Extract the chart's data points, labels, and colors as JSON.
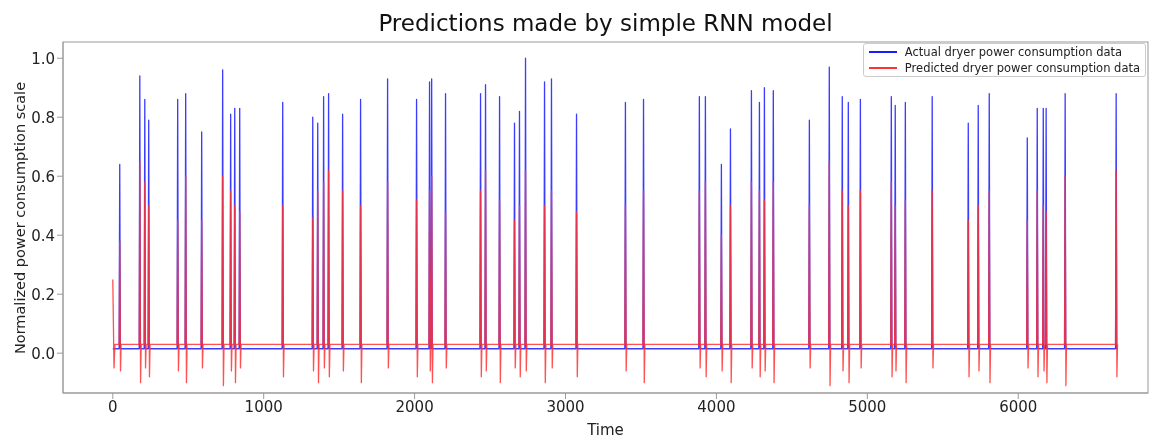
{
  "chart_data": {
    "type": "line",
    "title": "Predictions made by simple RNN model",
    "xlabel": "Time",
    "ylabel": "Normalized power consumption scale",
    "xlim": [
      -330,
      6860
    ],
    "xticks": [
      0,
      1000,
      2000,
      3000,
      4000,
      5000,
      6000
    ],
    "ylim": [
      -0.135,
      1.055
    ],
    "yticks": [
      {
        "value": 0,
        "label": "0.0"
      },
      0.2,
      0.4,
      0.6,
      0.8,
      {
        "value": 1,
        "label": "1.0"
      }
    ],
    "grid": false,
    "legend": "top right",
    "series": [
      {
        "name": "Actual dryer power consumption data",
        "color": "#1a1aff",
        "x": [
          0,
          42,
          46,
          50,
          175,
          179,
          183,
          208,
          212,
          216,
          234,
          238,
          242,
          426,
          430,
          434,
          479,
          483,
          487,
          585,
          589,
          593,
          724,
          728,
          732,
          777,
          781,
          785,
          804,
          808,
          812,
          837,
          841,
          845,
          1122,
          1126,
          1130,
          1321,
          1325,
          1329,
          1354,
          1358,
          1362,
          1393,
          1397,
          1401,
          1426,
          1430,
          1434,
          1519,
          1523,
          1527,
          1638,
          1642,
          1646,
          1817,
          1821,
          1825,
          2009,
          2013,
          2017,
          2095,
          2099,
          2103,
          2109,
          2113,
          2117,
          2201,
          2205,
          2209,
          2433,
          2437,
          2441,
          2466,
          2470,
          2474,
          2559,
          2563,
          2567,
          2658,
          2662,
          2666,
          2691,
          2695,
          2699,
          2731,
          2735,
          2739,
          2857,
          2861,
          2865,
          2903,
          2907,
          2911,
          3069,
          3073,
          3077,
          3393,
          3397,
          3401,
          3513,
          3517,
          3521,
          3883,
          3887,
          3891,
          3923,
          3927,
          3931,
          4029,
          4033,
          4037,
          4089,
          4093,
          4097,
          4228,
          4232,
          4236,
          4281,
          4285,
          4289,
          4314,
          4318,
          4322,
          4373,
          4377,
          4381,
          4612,
          4616,
          4620,
          4744,
          4748,
          4752,
          4830,
          4834,
          4838,
          4870,
          4874,
          4878,
          4950,
          4954,
          4958,
          5155,
          5159,
          5163,
          5181,
          5185,
          5189,
          5248,
          5252,
          5256,
          5426,
          5430,
          5434,
          5665,
          5669,
          5673,
          5731,
          5735,
          5739,
          5804,
          5808,
          5812,
          6056,
          6060,
          6064,
          6122,
          6126,
          6130,
          6162,
          6166,
          6170,
          6181,
          6185,
          6189,
          6307,
          6311,
          6315,
          6645,
          6649,
          6653,
          6660
        ],
        "values": [
          0.015,
          0.015,
          0.64,
          0.015,
          0.015,
          0.94,
          0.015,
          0.015,
          0.86,
          0.015,
          0.015,
          0.79,
          0.015,
          0.015,
          0.86,
          0.015,
          0.015,
          0.88,
          0.015,
          0.015,
          0.75,
          0.015,
          0.015,
          0.96,
          0.015,
          0.015,
          0.81,
          0.015,
          0.015,
          0.83,
          0.015,
          0.015,
          0.83,
          0.015,
          0.015,
          0.85,
          0.015,
          0.015,
          0.8,
          0.015,
          0.015,
          0.78,
          0.015,
          0.015,
          0.87,
          0.015,
          0.015,
          0.88,
          0.015,
          0.015,
          0.81,
          0.015,
          0.015,
          0.86,
          0.015,
          0.015,
          0.93,
          0.015,
          0.015,
          0.86,
          0.015,
          0.015,
          0.92,
          0.015,
          0.015,
          0.93,
          0.015,
          0.015,
          0.88,
          0.015,
          0.015,
          0.88,
          0.015,
          0.015,
          0.91,
          0.015,
          0.015,
          0.87,
          0.015,
          0.015,
          0.78,
          0.015,
          0.015,
          0.82,
          0.015,
          0.015,
          1.0,
          0.015,
          0.015,
          0.92,
          0.015,
          0.015,
          0.93,
          0.015,
          0.015,
          0.81,
          0.015,
          0.015,
          0.85,
          0.015,
          0.015,
          0.86,
          0.015,
          0.015,
          0.87,
          0.015,
          0.015,
          0.87,
          0.015,
          0.015,
          0.64,
          0.015,
          0.015,
          0.76,
          0.015,
          0.015,
          0.89,
          0.015,
          0.015,
          0.85,
          0.015,
          0.015,
          0.9,
          0.015,
          0.015,
          0.89,
          0.015,
          0.015,
          0.79,
          0.015,
          0.015,
          0.97,
          0.015,
          0.015,
          0.87,
          0.015,
          0.015,
          0.85,
          0.015,
          0.015,
          0.86,
          0.015,
          0.015,
          0.87,
          0.015,
          0.015,
          0.84,
          0.015,
          0.015,
          0.85,
          0.015,
          0.015,
          0.87,
          0.015,
          0.015,
          0.78,
          0.015,
          0.015,
          0.84,
          0.015,
          0.015,
          0.88,
          0.015,
          0.015,
          0.73,
          0.015,
          0.015,
          0.83,
          0.015,
          0.015,
          0.83,
          0.015,
          0.015,
          0.83,
          0.015,
          0.015,
          0.88,
          0.015,
          0.015,
          0.88,
          0.015,
          0.015
        ]
      },
      {
        "name": "Predicted dryer power consumption data",
        "color": "#ff3333",
        "x": [
          0,
          8,
          14,
          42,
          46,
          51,
          55,
          175,
          179,
          184,
          188,
          208,
          212,
          217,
          221,
          234,
          238,
          243,
          247,
          426,
          430,
          435,
          439,
          479,
          483,
          488,
          492,
          585,
          589,
          594,
          598,
          724,
          728,
          733,
          737,
          777,
          781,
          786,
          790,
          804,
          808,
          813,
          817,
          837,
          841,
          846,
          850,
          1122,
          1126,
          1131,
          1135,
          1321,
          1325,
          1330,
          1334,
          1354,
          1358,
          1363,
          1367,
          1393,
          1397,
          1402,
          1406,
          1426,
          1430,
          1435,
          1439,
          1519,
          1523,
          1528,
          1532,
          1638,
          1642,
          1647,
          1651,
          1817,
          1821,
          1826,
          1830,
          2009,
          2013,
          2018,
          2022,
          2095,
          2099,
          2104,
          2108,
          2109,
          2113,
          2118,
          2122,
          2201,
          2205,
          2210,
          2214,
          2433,
          2437,
          2442,
          2446,
          2466,
          2470,
          2475,
          2479,
          2559,
          2563,
          2568,
          2572,
          2658,
          2662,
          2667,
          2671,
          2691,
          2695,
          2700,
          2704,
          2731,
          2735,
          2740,
          2744,
          2857,
          2861,
          2866,
          2870,
          2903,
          2907,
          2912,
          2916,
          3069,
          3073,
          3078,
          3082,
          3393,
          3397,
          3402,
          3406,
          3513,
          3517,
          3522,
          3526,
          3883,
          3887,
          3892,
          3896,
          3923,
          3927,
          3932,
          3936,
          4029,
          4033,
          4038,
          4042,
          4089,
          4093,
          4098,
          4102,
          4228,
          4232,
          4237,
          4241,
          4281,
          4285,
          4290,
          4294,
          4314,
          4318,
          4323,
          4327,
          4373,
          4377,
          4382,
          4386,
          4612,
          4616,
          4621,
          4625,
          4744,
          4748,
          4753,
          4757,
          4830,
          4834,
          4839,
          4843,
          4870,
          4874,
          4879,
          4883,
          4950,
          4954,
          4959,
          4963,
          5155,
          5159,
          5164,
          5168,
          5181,
          5185,
          5190,
          5194,
          5248,
          5252,
          5257,
          5261,
          5426,
          5430,
          5435,
          5439,
          5665,
          5669,
          5674,
          5678,
          5731,
          5735,
          5740,
          5744,
          5804,
          5808,
          5813,
          5817,
          6056,
          6060,
          6065,
          6069,
          6122,
          6126,
          6131,
          6135,
          6162,
          6166,
          6171,
          6175,
          6181,
          6185,
          6190,
          6194,
          6307,
          6311,
          6316,
          6320,
          6645,
          6649,
          6654,
          6658
        ],
        "values": [
          0.25,
          -0.05,
          0.03,
          0.03,
          0.38,
          -0.06,
          0.03,
          0.03,
          0.65,
          -0.1,
          0.03,
          0.03,
          0.58,
          -0.05,
          0.03,
          0.03,
          0.5,
          -0.08,
          0.03,
          0.03,
          0.45,
          -0.06,
          0.03,
          0.03,
          0.6,
          -0.1,
          0.03,
          0.03,
          0.45,
          -0.05,
          0.03,
          0.03,
          0.6,
          -0.11,
          0.03,
          0.03,
          0.55,
          -0.06,
          0.03,
          0.03,
          0.5,
          -0.1,
          0.03,
          0.03,
          0.48,
          -0.05,
          0.03,
          0.03,
          0.5,
          -0.08,
          0.03,
          0.03,
          0.46,
          -0.06,
          0.03,
          0.03,
          0.55,
          -0.1,
          0.03,
          0.03,
          0.58,
          -0.05,
          0.03,
          0.03,
          0.62,
          -0.08,
          0.03,
          0.03,
          0.55,
          -0.06,
          0.03,
          0.03,
          0.5,
          -0.1,
          0.03,
          0.03,
          0.58,
          -0.05,
          0.03,
          0.03,
          0.52,
          -0.08,
          0.03,
          0.03,
          0.55,
          -0.06,
          0.03,
          0.03,
          0.6,
          -0.1,
          0.03,
          0.03,
          0.48,
          -0.05,
          0.03,
          0.03,
          0.55,
          -0.08,
          0.03,
          0.03,
          0.62,
          -0.06,
          0.03,
          0.03,
          0.52,
          -0.1,
          0.03,
          0.03,
          0.45,
          -0.05,
          0.03,
          0.03,
          0.5,
          -0.08,
          0.03,
          0.03,
          0.62,
          -0.06,
          0.03,
          0.03,
          0.5,
          -0.1,
          0.03,
          0.03,
          0.55,
          -0.05,
          0.03,
          0.03,
          0.48,
          -0.08,
          0.03,
          0.03,
          0.5,
          -0.06,
          0.03,
          0.03,
          0.55,
          -0.1,
          0.03,
          0.03,
          0.55,
          -0.05,
          0.03,
          0.03,
          0.58,
          -0.08,
          0.03,
          0.03,
          0.4,
          -0.06,
          0.03,
          0.03,
          0.5,
          -0.1,
          0.03,
          0.03,
          0.58,
          -0.05,
          0.03,
          0.03,
          0.55,
          -0.08,
          0.03,
          0.03,
          0.52,
          -0.06,
          0.03,
          0.03,
          0.58,
          -0.1,
          0.03,
          0.03,
          0.5,
          -0.05,
          0.03,
          0.03,
          0.65,
          -0.11,
          0.03,
          0.03,
          0.55,
          -0.06,
          0.03,
          0.03,
          0.5,
          -0.1,
          0.03,
          0.03,
          0.55,
          -0.05,
          0.03,
          0.03,
          0.58,
          -0.08,
          0.03,
          0.03,
          0.5,
          -0.06,
          0.03,
          0.03,
          0.52,
          -0.1,
          0.03,
          0.03,
          0.55,
          -0.05,
          0.03,
          0.03,
          0.45,
          -0.08,
          0.03,
          0.03,
          0.5,
          -0.06,
          0.03,
          0.03,
          0.55,
          -0.1,
          0.03,
          0.03,
          0.45,
          -0.05,
          0.03,
          0.03,
          0.55,
          -0.08,
          0.03,
          0.03,
          0.5,
          -0.06,
          0.03,
          0.03,
          0.48,
          -0.1,
          0.03,
          0.03,
          0.6,
          -0.11,
          0.03,
          0.03,
          0.62,
          -0.08,
          0.03
        ]
      }
    ]
  }
}
